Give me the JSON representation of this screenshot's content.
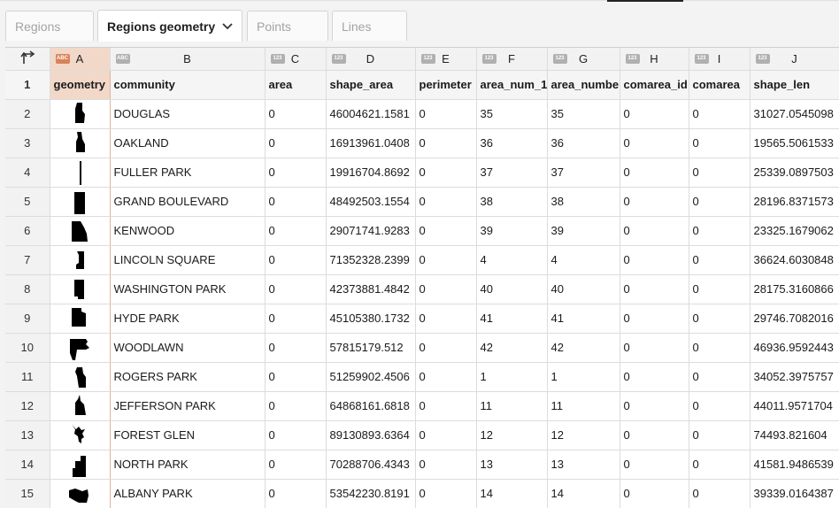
{
  "tabs": [
    {
      "label": "Regions",
      "active": false
    },
    {
      "label": "Regions geometry",
      "active": true
    },
    {
      "label": "Points",
      "active": false
    },
    {
      "label": "Lines",
      "active": false
    }
  ],
  "columns": [
    {
      "letter": "A",
      "type": "ABC",
      "name": "geometry"
    },
    {
      "letter": "B",
      "type": "ABC",
      "name": "community"
    },
    {
      "letter": "C",
      "type": "123",
      "name": "area"
    },
    {
      "letter": "D",
      "type": "123",
      "name": "shape_area"
    },
    {
      "letter": "E",
      "type": "123",
      "name": "perimeter"
    },
    {
      "letter": "F",
      "type": "123",
      "name": "area_num_1"
    },
    {
      "letter": "G",
      "type": "123",
      "name": "area_numbe"
    },
    {
      "letter": "H",
      "type": "123",
      "name": "comarea_id"
    },
    {
      "letter": "I",
      "type": "123",
      "name": "comarea"
    },
    {
      "letter": "J",
      "type": "123",
      "name": "shape_len"
    }
  ],
  "rows": [
    {
      "n": "2",
      "cells": [
        "DOUGLAS",
        "0",
        "46004621.1581",
        "0",
        "35",
        "35",
        "0",
        "0",
        "31027.0545098"
      ]
    },
    {
      "n": "3",
      "cells": [
        "OAKLAND",
        "0",
        "16913961.0408",
        "0",
        "36",
        "36",
        "0",
        "0",
        "19565.5061533"
      ]
    },
    {
      "n": "4",
      "cells": [
        "FULLER PARK",
        "0",
        "19916704.8692",
        "0",
        "37",
        "37",
        "0",
        "0",
        "25339.0897503"
      ]
    },
    {
      "n": "5",
      "cells": [
        "GRAND BOULEVARD",
        "0",
        "48492503.1554",
        "0",
        "38",
        "38",
        "0",
        "0",
        "28196.8371573"
      ]
    },
    {
      "n": "6",
      "cells": [
        "KENWOOD",
        "0",
        "29071741.9283",
        "0",
        "39",
        "39",
        "0",
        "0",
        "23325.1679062"
      ]
    },
    {
      "n": "7",
      "cells": [
        "LINCOLN SQUARE",
        "0",
        "71352328.2399",
        "0",
        "4",
        "4",
        "0",
        "0",
        "36624.6030848"
      ]
    },
    {
      "n": "8",
      "cells": [
        "WASHINGTON PARK",
        "0",
        "42373881.4842",
        "0",
        "40",
        "40",
        "0",
        "0",
        "28175.3160866"
      ]
    },
    {
      "n": "9",
      "cells": [
        "HYDE PARK",
        "0",
        "45105380.1732",
        "0",
        "41",
        "41",
        "0",
        "0",
        "29746.7082016"
      ]
    },
    {
      "n": "10",
      "cells": [
        "WOODLAWN",
        "0",
        "57815179.512",
        "0",
        "42",
        "42",
        "0",
        "0",
        "46936.9592443"
      ]
    },
    {
      "n": "11",
      "cells": [
        "ROGERS PARK",
        "0",
        "51259902.4506",
        "0",
        "1",
        "1",
        "0",
        "0",
        "34052.3975757"
      ]
    },
    {
      "n": "12",
      "cells": [
        "JEFFERSON PARK",
        "0",
        "64868161.6818",
        "0",
        "11",
        "11",
        "0",
        "0",
        "44011.9571704"
      ]
    },
    {
      "n": "13",
      "cells": [
        "FOREST GLEN",
        "0",
        "89130893.6364",
        "0",
        "12",
        "12",
        "0",
        "0",
        "74493.821604"
      ]
    },
    {
      "n": "14",
      "cells": [
        "NORTH PARK",
        "0",
        "70288706.4343",
        "0",
        "13",
        "13",
        "0",
        "0",
        "41581.9486539"
      ]
    },
    {
      "n": "15",
      "cells": [
        "ALBANY PARK",
        "0",
        "53542230.8191",
        "0",
        "14",
        "14",
        "0",
        "0",
        "39339.0164387"
      ]
    }
  ],
  "header_row_number": "1",
  "icons": {
    "corner": "sort-arrow-icon",
    "tab_menu": "chevron-down-icon",
    "geometry": "polygon-shape-icon"
  },
  "colors": {
    "selected_column": "#f2d8c9",
    "type_badge_selected": "#d9825a",
    "type_badge": "#b0b0b0"
  }
}
